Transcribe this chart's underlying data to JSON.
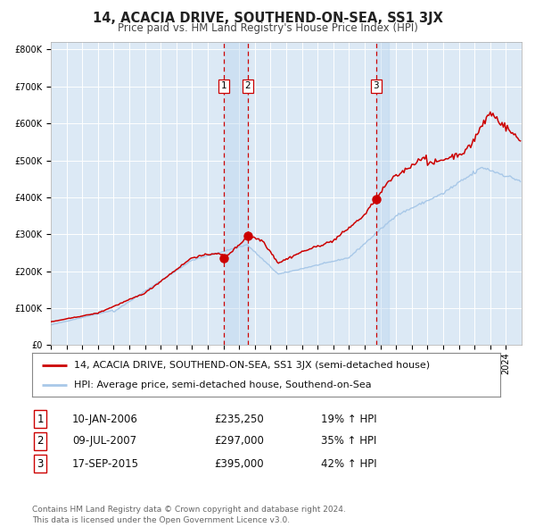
{
  "title": "14, ACACIA DRIVE, SOUTHEND-ON-SEA, SS1 3JX",
  "subtitle": "Price paid vs. HM Land Registry's House Price Index (HPI)",
  "ytick_values": [
    0,
    100000,
    200000,
    300000,
    400000,
    500000,
    600000,
    700000,
    800000
  ],
  "ylim": [
    0,
    820000
  ],
  "xlim_start": 1995.0,
  "xlim_end": 2025.0,
  "plot_bg_color": "#dce9f5",
  "grid_color": "#ffffff",
  "hpi_line_color": "#a8c8e8",
  "price_line_color": "#cc0000",
  "sale_marker_color": "#cc0000",
  "vline_color": "#cc0000",
  "transaction_labels": [
    "1",
    "2",
    "3"
  ],
  "transaction_dates_year": [
    2006.04,
    2007.54,
    2015.72
  ],
  "transaction_prices": [
    235250,
    297000,
    395000
  ],
  "legend_sale_label": "14, ACACIA DRIVE, SOUTHEND-ON-SEA, SS1 3JX (semi-detached house)",
  "legend_hpi_label": "HPI: Average price, semi-detached house, Southend-on-Sea",
  "table_rows": [
    [
      "1",
      "10-JAN-2006",
      "£235,250",
      "19% ↑ HPI"
    ],
    [
      "2",
      "09-JUL-2007",
      "£297,000",
      "35% ↑ HPI"
    ],
    [
      "3",
      "17-SEP-2015",
      "£395,000",
      "42% ↑ HPI"
    ]
  ],
  "footer": "Contains HM Land Registry data © Crown copyright and database right 2024.\nThis data is licensed under the Open Government Licence v3.0.",
  "title_fontsize": 10.5,
  "subtitle_fontsize": 8.5,
  "tick_fontsize": 7,
  "legend_fontsize": 8,
  "table_fontsize": 8.5,
  "footer_fontsize": 6.5
}
